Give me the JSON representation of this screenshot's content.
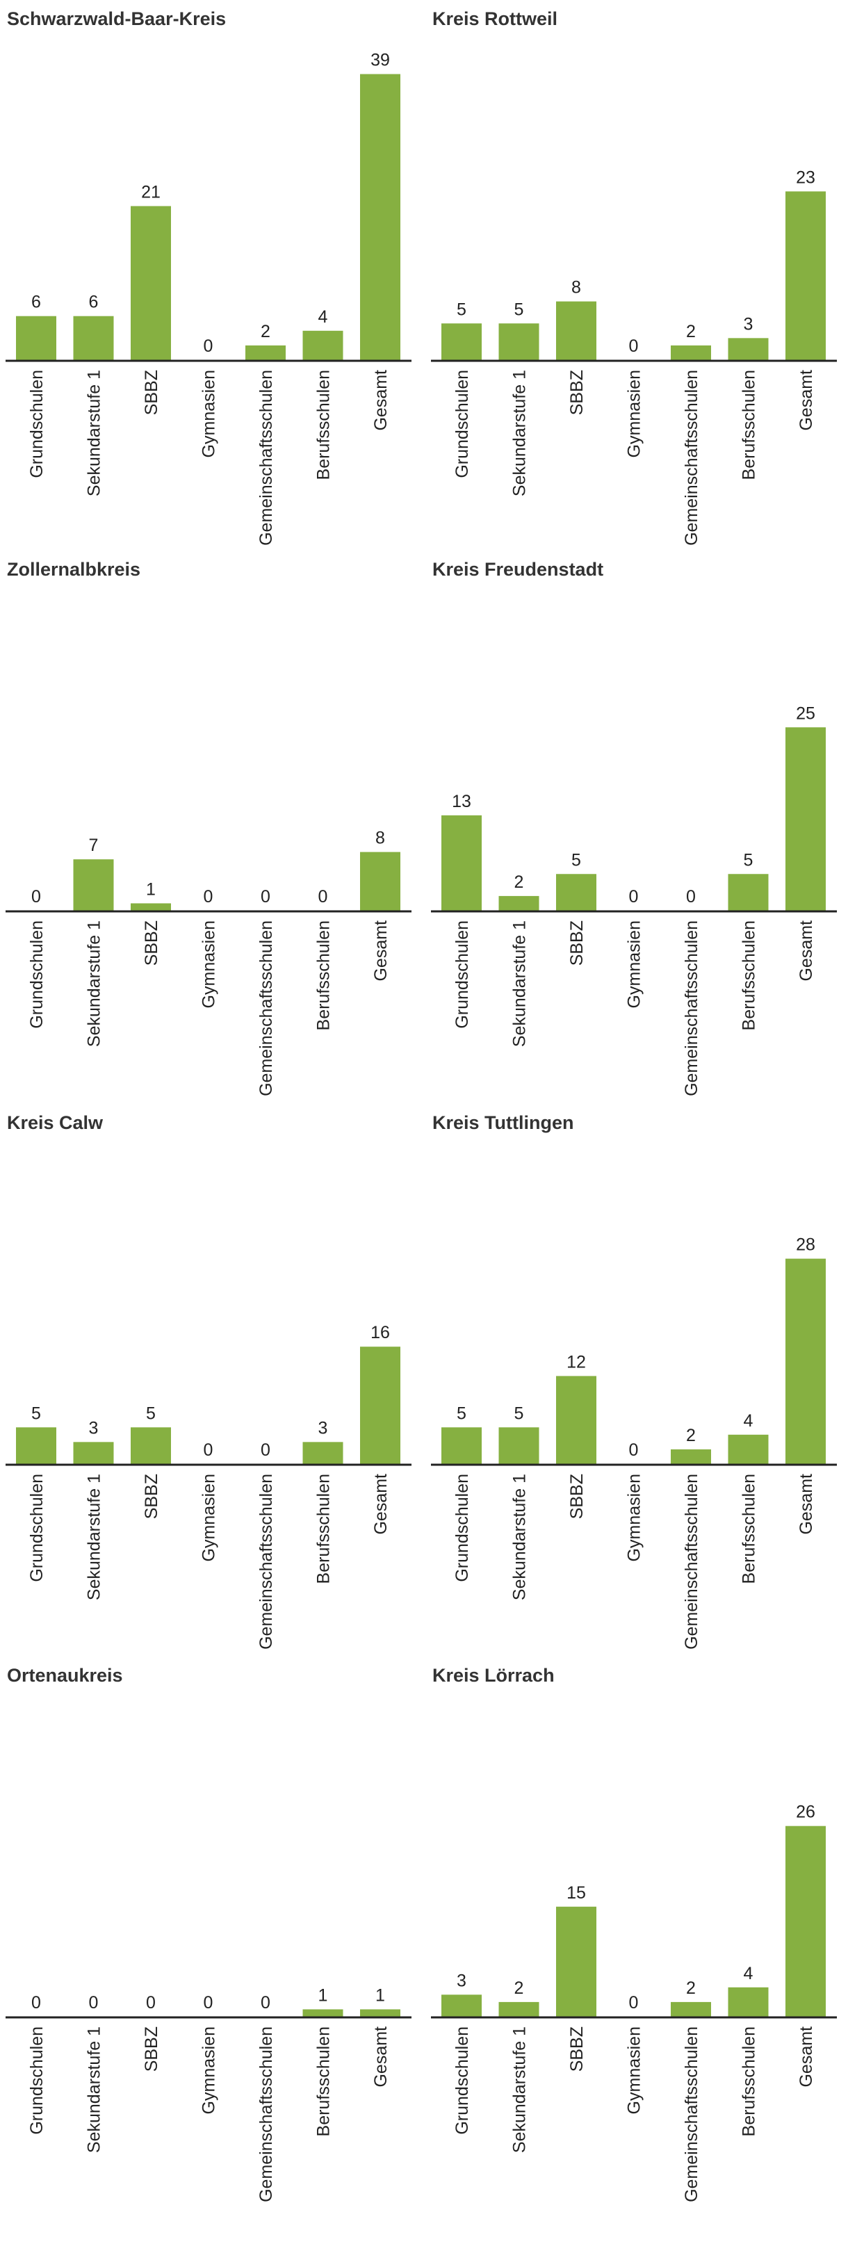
{
  "chart_data": [
    {
      "type": "bar",
      "title": "Schwarzwald-Baar-Kreis",
      "categories": [
        "Grundschulen",
        "Sekundarstufe 1",
        "SBBZ",
        "Gymnasien",
        "Gemeinschaftsschulen",
        "Berufsschulen",
        "Gesamt"
      ],
      "values": [
        6,
        6,
        21,
        0,
        2,
        4,
        39
      ],
      "color": "#86b041"
    },
    {
      "type": "bar",
      "title": "Kreis Rottweil",
      "categories": [
        "Grundschulen",
        "Sekundarstufe 1",
        "SBBZ",
        "Gymnasien",
        "Gemeinschaftsschulen",
        "Berufsschulen",
        "Gesamt"
      ],
      "values": [
        5,
        5,
        8,
        0,
        2,
        3,
        23
      ],
      "color": "#86b041"
    },
    {
      "type": "bar",
      "title": "Zollernalbkreis",
      "categories": [
        "Grundschulen",
        "Sekundarstufe 1",
        "SBBZ",
        "Gymnasien",
        "Gemeinschaftsschulen",
        "Berufsschulen",
        "Gesamt"
      ],
      "values": [
        0,
        7,
        1,
        0,
        0,
        0,
        8
      ],
      "color": "#86b041"
    },
    {
      "type": "bar",
      "title": "Kreis Freudenstadt",
      "categories": [
        "Grundschulen",
        "Sekundarstufe 1",
        "SBBZ",
        "Gymnasien",
        "Gemeinschaftsschulen",
        "Berufsschulen",
        "Gesamt"
      ],
      "values": [
        13,
        2,
        5,
        0,
        0,
        5,
        25
      ],
      "color": "#86b041"
    },
    {
      "type": "bar",
      "title": "Kreis Calw",
      "categories": [
        "Grundschulen",
        "Sekundarstufe 1",
        "SBBZ",
        "Gymnasien",
        "Gemeinschaftsschulen",
        "Berufsschulen",
        "Gesamt"
      ],
      "values": [
        5,
        3,
        5,
        0,
        0,
        3,
        16
      ],
      "color": "#86b041"
    },
    {
      "type": "bar",
      "title": "Kreis Tuttlingen",
      "categories": [
        "Grundschulen",
        "Sekundarstufe 1",
        "SBBZ",
        "Gymnasien",
        "Gemeinschaftsschulen",
        "Berufsschulen",
        "Gesamt"
      ],
      "values": [
        5,
        5,
        12,
        0,
        2,
        4,
        28
      ],
      "color": "#86b041"
    },
    {
      "type": "bar",
      "title": "Ortenaukreis",
      "categories": [
        "Grundschulen",
        "Sekundarstufe 1",
        "SBBZ",
        "Gymnasien",
        "Gemeinschaftsschulen",
        "Berufsschulen",
        "Gesamt"
      ],
      "values": [
        0,
        0,
        0,
        0,
        0,
        1,
        1
      ],
      "color": "#86b041"
    },
    {
      "type": "bar",
      "title": "Kreis Lörrach",
      "categories": [
        "Grundschulen",
        "Sekundarstufe 1",
        "SBBZ",
        "Gymnasien",
        "Gemeinschaftsschulen",
        "Berufsschulen",
        "Gesamt"
      ],
      "values": [
        3,
        2,
        15,
        0,
        2,
        4,
        26
      ],
      "color": "#86b041"
    }
  ]
}
